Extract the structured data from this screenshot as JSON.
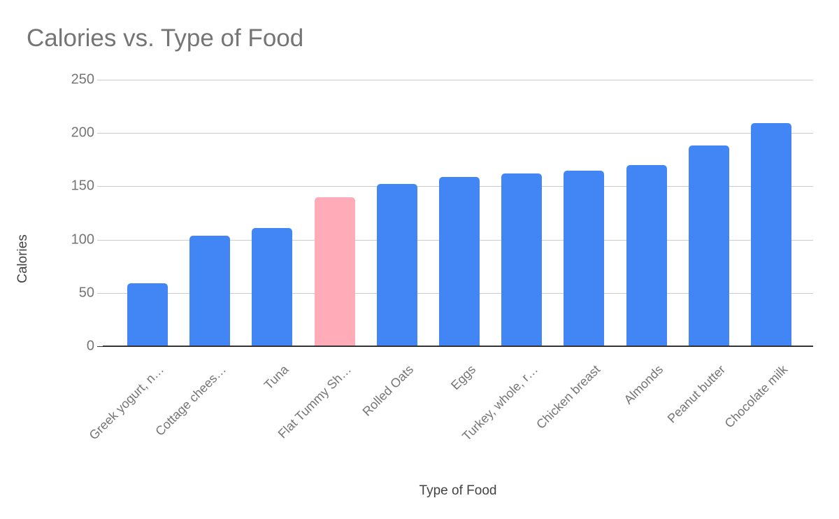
{
  "chart_data": {
    "type": "bar",
    "title": "Calories vs. Type of Food",
    "xlabel": "Type of Food",
    "ylabel": "Calories",
    "categories": [
      "Greek yogurt, n…",
      "Cottage chees…",
      "Tuna",
      "Flat Tummy Sh…",
      "Rolled Oats",
      "Eggs",
      "Turkey, whole, r…",
      "Chicken breast",
      "Almonds",
      "Peanut butter",
      "Chocolate milk"
    ],
    "values": [
      59,
      104,
      111,
      140,
      152,
      159,
      162,
      165,
      170,
      188,
      209
    ],
    "highlight_index": 3,
    "yticks": [
      0,
      50,
      100,
      150,
      200,
      250
    ],
    "ylim": [
      0,
      250
    ],
    "grid": "horizontal-only",
    "legend": "none"
  },
  "colors": {
    "bar": "#4285f4",
    "highlight_bar": "#ffabb8",
    "title_text": "#757575",
    "tick_label_text": "#757575",
    "axis_title_text": "#424242",
    "gridline": "#cccccc",
    "baseline": "#333333"
  }
}
